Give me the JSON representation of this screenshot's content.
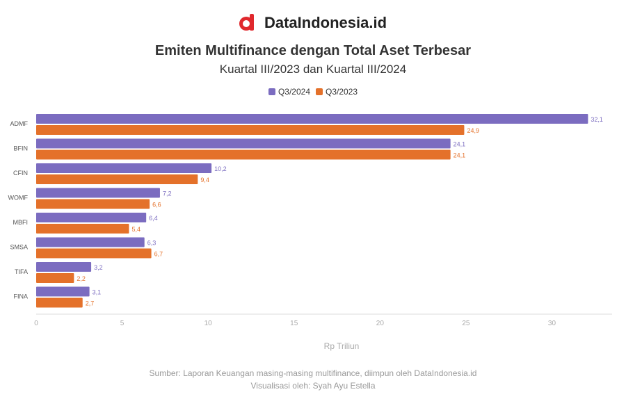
{
  "brand": {
    "name": "DataIndonesia.id",
    "logo_icon": "dataindonesia-logo-icon"
  },
  "colors": {
    "q3_2024": "#7b6cc0",
    "q3_2023": "#e4712a",
    "axis": "#dddddd",
    "tick_text": "#aaaaaa"
  },
  "chart_data": {
    "type": "bar",
    "orientation": "horizontal",
    "title": "Emiten Multifinance dengan Total Aset Terbesar",
    "subtitle": "Kuartal III/2023 dan Kuartal III/2024",
    "categories": [
      "ADMF",
      "BFIN",
      "CFIN",
      "WOMF",
      "MBFI",
      "SMSA",
      "TIFA",
      "FINA"
    ],
    "series": [
      {
        "name": "Q3/2024",
        "values": [
          32.1,
          24.1,
          10.2,
          7.2,
          6.4,
          6.3,
          3.2,
          3.1
        ]
      },
      {
        "name": "Q3/2023",
        "values": [
          24.9,
          24.1,
          9.4,
          6.6,
          5.4,
          6.7,
          2.2,
          2.7
        ]
      }
    ],
    "xlim": [
      0,
      33.5
    ],
    "xticks": [
      "0",
      "5",
      "10",
      "15",
      "20",
      "25",
      "30"
    ],
    "xlabel": "Rp Triliun",
    "ylabel": "",
    "legend_position": "top-center",
    "grid": false
  },
  "footer": {
    "source": "Sumber: Laporan Keuangan masing-masing multifinance, diimpun oleh DataIndonesia.id",
    "visualization": "Visualisasi oleh: Syah Ayu Estella"
  }
}
